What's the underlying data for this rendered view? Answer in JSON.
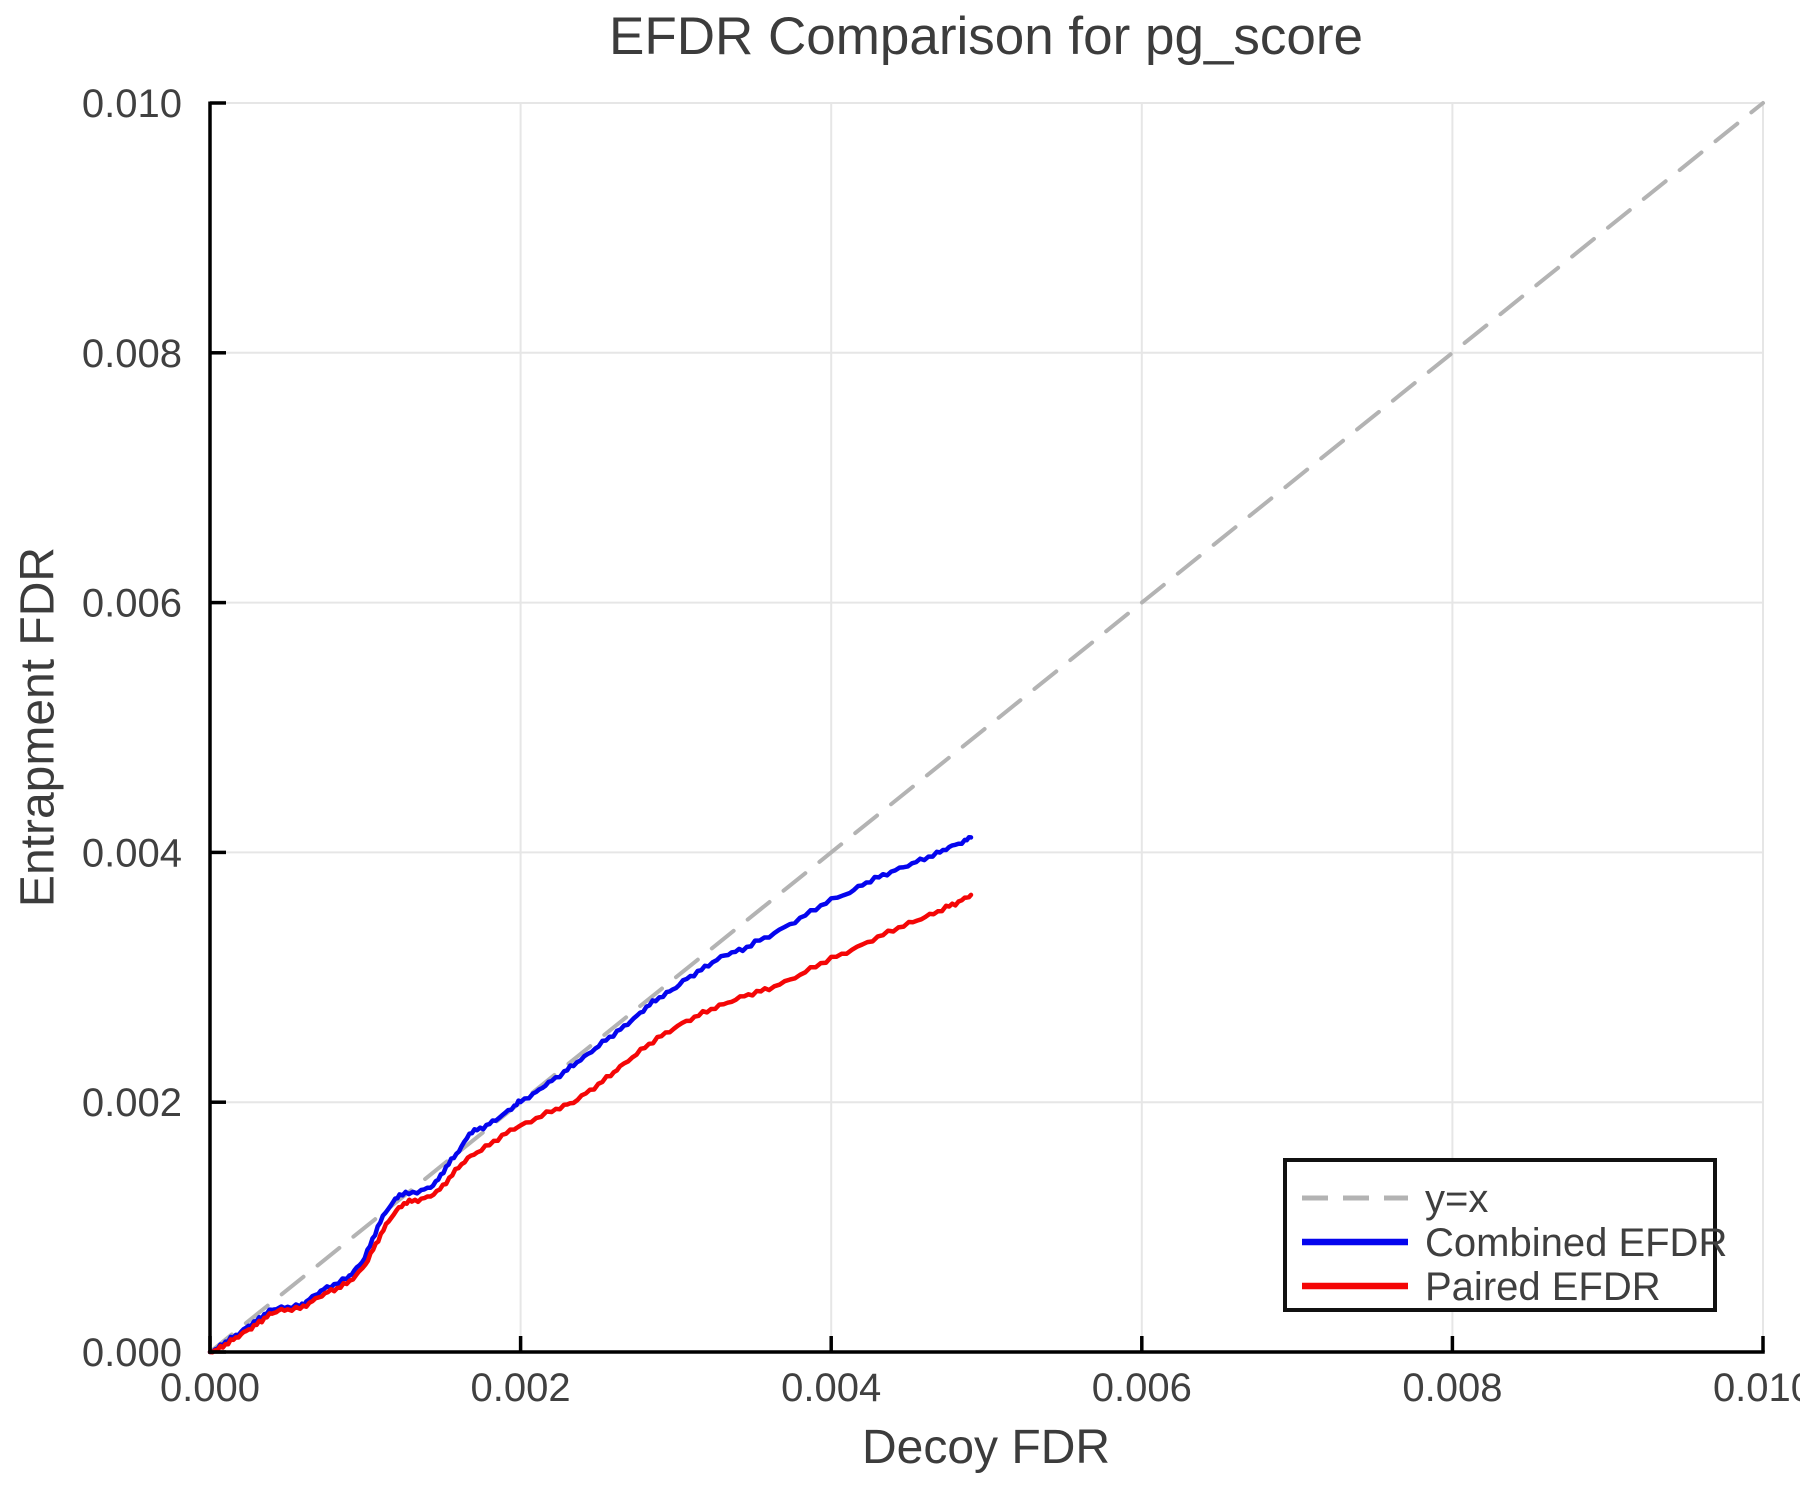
{
  "title": "EFDR Comparison for pg_score",
  "chart_data": {
    "type": "line",
    "title": "EFDR Comparison for pg_score",
    "xlabel": "Decoy FDR",
    "ylabel": "Entrapment FDR",
    "xlim": [
      0.0,
      0.01
    ],
    "ylim": [
      0.0,
      0.01
    ],
    "grid": true,
    "grid_color": "#e6e6e6",
    "spine_color": "#000000",
    "background": "#ffffff",
    "xticks": [
      0.0,
      0.002,
      0.004,
      0.006,
      0.008,
      0.01
    ],
    "yticks": [
      0.0,
      0.002,
      0.004,
      0.006,
      0.008,
      0.01
    ],
    "xtick_labels": [
      "0.000",
      "0.002",
      "0.004",
      "0.006",
      "0.008",
      "0.010"
    ],
    "ytick_labels": [
      "0.000",
      "0.002",
      "0.004",
      "0.006",
      "0.008",
      "0.010"
    ],
    "legend": {
      "position": "lower-right",
      "border_color": "#111111",
      "fill": "#ffffff"
    },
    "series": [
      {
        "name": "y=x",
        "style": "dashed",
        "color": "#b3b3b3",
        "width": 4,
        "points": [
          [
            0.0,
            0.0
          ],
          [
            0.01,
            0.01
          ]
        ]
      },
      {
        "name": "Combined EFDR",
        "style": "solid",
        "color": "#0505ee",
        "width": 4.5,
        "points": [
          [
            0.0,
            0.0
          ],
          [
            5e-05,
            3e-05
          ],
          [
            0.0001,
            8e-05
          ],
          [
            0.00015,
            0.00012
          ],
          [
            0.0002,
            0.00016
          ],
          [
            0.00025,
            0.00021
          ],
          [
            0.0003,
            0.00025
          ],
          [
            0.00035,
            0.0003
          ],
          [
            0.0004,
            0.00034
          ],
          [
            0.00044,
            0.00035
          ],
          [
            0.0005,
            0.00036
          ],
          [
            0.00058,
            0.00037
          ],
          [
            0.00062,
            0.0004
          ],
          [
            0.00068,
            0.00046
          ],
          [
            0.00073,
            0.0005
          ],
          [
            0.0008,
            0.00054
          ],
          [
            0.00088,
            0.00059
          ],
          [
            0.00093,
            0.00065
          ],
          [
            0.00098,
            0.00072
          ],
          [
            0.00103,
            0.00085
          ],
          [
            0.00108,
            0.001
          ],
          [
            0.00113,
            0.00112
          ],
          [
            0.00118,
            0.0012
          ],
          [
            0.00122,
            0.00126
          ],
          [
            0.00128,
            0.00127
          ],
          [
            0.00136,
            0.00129
          ],
          [
            0.00142,
            0.00132
          ],
          [
            0.00147,
            0.00138
          ],
          [
            0.00152,
            0.00148
          ],
          [
            0.00157,
            0.00156
          ],
          [
            0.00162,
            0.00164
          ],
          [
            0.00167,
            0.00175
          ],
          [
            0.00172,
            0.00178
          ],
          [
            0.00178,
            0.00181
          ],
          [
            0.00184,
            0.00186
          ],
          [
            0.0019,
            0.00191
          ],
          [
            0.00196,
            0.00197
          ],
          [
            0.002,
            0.00201
          ],
          [
            0.00208,
            0.00206
          ],
          [
            0.00214,
            0.00212
          ],
          [
            0.0022,
            0.00217
          ],
          [
            0.00228,
            0.00224
          ],
          [
            0.00234,
            0.0023
          ],
          [
            0.00241,
            0.00236
          ],
          [
            0.00248,
            0.00243
          ],
          [
            0.00255,
            0.0025
          ],
          [
            0.00262,
            0.00256
          ],
          [
            0.00269,
            0.00263
          ],
          [
            0.00275,
            0.00269
          ],
          [
            0.00281,
            0.00276
          ],
          [
            0.00287,
            0.00282
          ],
          [
            0.00294,
            0.00287
          ],
          [
            0.003,
            0.00292
          ],
          [
            0.00307,
            0.00299
          ],
          [
            0.00314,
            0.00304
          ],
          [
            0.00321,
            0.0031
          ],
          [
            0.00329,
            0.00316
          ],
          [
            0.00336,
            0.0032
          ],
          [
            0.00343,
            0.00322
          ],
          [
            0.00351,
            0.00328
          ],
          [
            0.0036,
            0.00333
          ],
          [
            0.0037,
            0.0034
          ],
          [
            0.0038,
            0.00347
          ],
          [
            0.0039,
            0.00355
          ],
          [
            0.004,
            0.00362
          ],
          [
            0.00412,
            0.00368
          ],
          [
            0.0042,
            0.00374
          ],
          [
            0.00428,
            0.00379
          ],
          [
            0.00436,
            0.00383
          ],
          [
            0.00444,
            0.00387
          ],
          [
            0.00452,
            0.00391
          ],
          [
            0.0046,
            0.00395
          ],
          [
            0.00468,
            0.00399
          ],
          [
            0.00474,
            0.00403
          ],
          [
            0.0048,
            0.00406
          ],
          [
            0.00486,
            0.00409
          ],
          [
            0.0049,
            0.00412
          ]
        ]
      },
      {
        "name": "Paired EFDR",
        "style": "solid",
        "color": "#f40606",
        "width": 4.5,
        "points": [
          [
            0.0,
            0.0
          ],
          [
            5e-05,
            2e-05
          ],
          [
            0.0001,
            6e-05
          ],
          [
            0.00015,
            0.0001
          ],
          [
            0.0002,
            0.00014
          ],
          [
            0.00025,
            0.00018
          ],
          [
            0.0003,
            0.00022
          ],
          [
            0.00035,
            0.00027
          ],
          [
            0.0004,
            0.00031
          ],
          [
            0.00044,
            0.00033
          ],
          [
            0.0005,
            0.00034
          ],
          [
            0.00058,
            0.00035
          ],
          [
            0.00064,
            0.00039
          ],
          [
            0.0007,
            0.00044
          ],
          [
            0.00076,
            0.00048
          ],
          [
            0.00082,
            0.00051
          ],
          [
            0.00088,
            0.00055
          ],
          [
            0.00094,
            0.00061
          ],
          [
            0.001,
            0.0007
          ],
          [
            0.00105,
            0.00082
          ],
          [
            0.0011,
            0.00094
          ],
          [
            0.00115,
            0.00105
          ],
          [
            0.0012,
            0.00113
          ],
          [
            0.00125,
            0.00119
          ],
          [
            0.0013,
            0.00121
          ],
          [
            0.00136,
            0.00122
          ],
          [
            0.00142,
            0.00125
          ],
          [
            0.00148,
            0.0013
          ],
          [
            0.00154,
            0.00139
          ],
          [
            0.0016,
            0.00148
          ],
          [
            0.00166,
            0.00155
          ],
          [
            0.00172,
            0.0016
          ],
          [
            0.0018,
            0.00166
          ],
          [
            0.00188,
            0.00173
          ],
          [
            0.00196,
            0.00179
          ],
          [
            0.002,
            0.00181
          ],
          [
            0.0021,
            0.00187
          ],
          [
            0.0022,
            0.00193
          ],
          [
            0.00228,
            0.00197
          ],
          [
            0.00234,
            0.002
          ],
          [
            0.00242,
            0.00207
          ],
          [
            0.0025,
            0.00214
          ],
          [
            0.00258,
            0.00222
          ],
          [
            0.00264,
            0.00228
          ],
          [
            0.00272,
            0.00236
          ],
          [
            0.0028,
            0.00244
          ],
          [
            0.00288,
            0.00251
          ],
          [
            0.00296,
            0.00257
          ],
          [
            0.00304,
            0.00263
          ],
          [
            0.00312,
            0.00268
          ],
          [
            0.0032,
            0.00273
          ],
          [
            0.00328,
            0.00277
          ],
          [
            0.00336,
            0.00281
          ],
          [
            0.00344,
            0.00285
          ],
          [
            0.00352,
            0.00288
          ],
          [
            0.0036,
            0.00291
          ],
          [
            0.0037,
            0.00296
          ],
          [
            0.0038,
            0.00302
          ],
          [
            0.0039,
            0.00309
          ],
          [
            0.004,
            0.00315
          ],
          [
            0.0041,
            0.0032
          ],
          [
            0.0042,
            0.00326
          ],
          [
            0.0043,
            0.00332
          ],
          [
            0.0044,
            0.00338
          ],
          [
            0.0045,
            0.00343
          ],
          [
            0.00458,
            0.00347
          ],
          [
            0.00466,
            0.00351
          ],
          [
            0.00474,
            0.00356
          ],
          [
            0.0048,
            0.00359
          ],
          [
            0.00486,
            0.00363
          ],
          [
            0.0049,
            0.00366
          ]
        ]
      }
    ]
  }
}
